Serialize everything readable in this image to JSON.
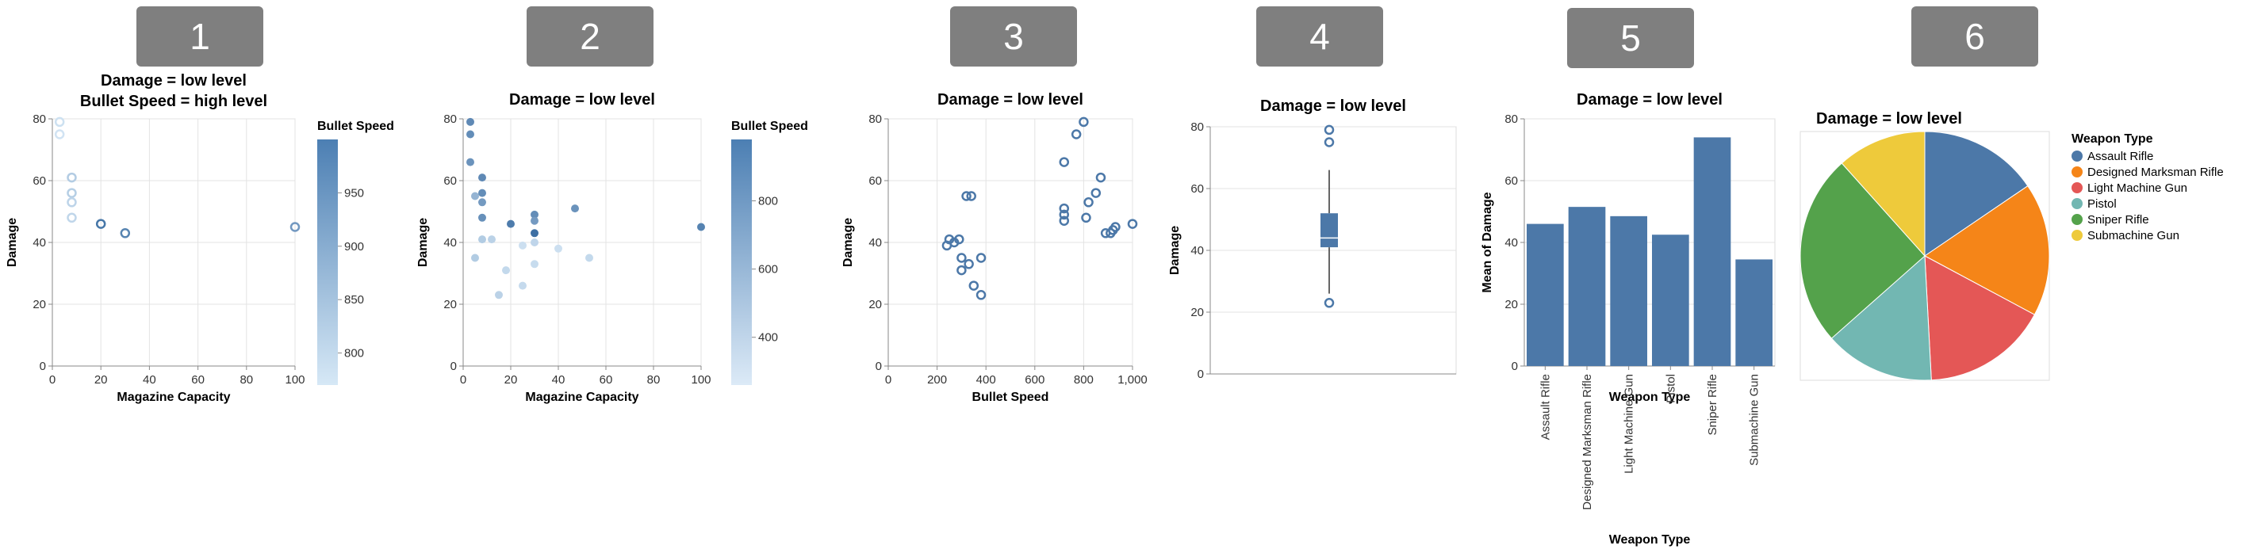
{
  "panels": {
    "badges": [
      "1",
      "2",
      "3",
      "4",
      "5",
      "6"
    ]
  },
  "chart_data": [
    {
      "id": "p1",
      "type": "scatter",
      "title": "Damage = low level",
      "subtitle": "Bullet Speed = high level",
      "xlabel": "Magazine Capacity",
      "ylabel": "Damage",
      "xlim": [
        0,
        100
      ],
      "ylim": [
        0,
        80
      ],
      "xticks": [
        "0",
        "20",
        "40",
        "60",
        "80",
        "100"
      ],
      "yticks": [
        "0",
        "20",
        "40",
        "60",
        "80"
      ],
      "legend": {
        "title": "Bullet Speed",
        "ticks": [
          "800",
          "850",
          "900",
          "950"
        ],
        "range": [
          770,
          1000
        ]
      },
      "points": [
        {
          "x": 3,
          "y": 79,
          "c": 780
        },
        {
          "x": 3,
          "y": 75,
          "c": 775
        },
        {
          "x": 8,
          "y": 61,
          "c": 820
        },
        {
          "x": 8,
          "y": 56,
          "c": 815
        },
        {
          "x": 8,
          "y": 53,
          "c": 805
        },
        {
          "x": 8,
          "y": 48,
          "c": 800
        },
        {
          "x": 20,
          "y": 46,
          "c": 985
        },
        {
          "x": 30,
          "y": 43,
          "c": 960
        },
        {
          "x": 100,
          "y": 45,
          "c": 920
        }
      ],
      "grid": true,
      "marks": "hollow circles"
    },
    {
      "id": "p2",
      "type": "scatter",
      "title": "Damage = low level",
      "xlabel": "Magazine Capacity",
      "ylabel": "Damage",
      "xlim": [
        0,
        100
      ],
      "ylim": [
        0,
        80
      ],
      "xticks": [
        "0",
        "20",
        "40",
        "60",
        "80",
        "100"
      ],
      "yticks": [
        "0",
        "20",
        "40",
        "60",
        "80"
      ],
      "legend": {
        "title": "Bullet Speed",
        "ticks": [
          "400",
          "600",
          "800"
        ],
        "range": [
          260,
          980
        ]
      },
      "points": [
        {
          "x": 3,
          "y": 79,
          "c": 820
        },
        {
          "x": 3,
          "y": 75,
          "c": 800
        },
        {
          "x": 3,
          "y": 66,
          "c": 760
        },
        {
          "x": 5,
          "y": 55,
          "c": 560
        },
        {
          "x": 5,
          "y": 35,
          "c": 420
        },
        {
          "x": 8,
          "y": 61,
          "c": 820
        },
        {
          "x": 8,
          "y": 56,
          "c": 800
        },
        {
          "x": 8,
          "y": 53,
          "c": 720
        },
        {
          "x": 8,
          "y": 48,
          "c": 780
        },
        {
          "x": 8,
          "y": 41,
          "c": 420
        },
        {
          "x": 12,
          "y": 41,
          "c": 380
        },
        {
          "x": 15,
          "y": 23,
          "c": 380
        },
        {
          "x": 18,
          "y": 31,
          "c": 340
        },
        {
          "x": 20,
          "y": 46,
          "c": 900
        },
        {
          "x": 25,
          "y": 39,
          "c": 300
        },
        {
          "x": 25,
          "y": 26,
          "c": 330
        },
        {
          "x": 30,
          "y": 49,
          "c": 800
        },
        {
          "x": 30,
          "y": 47,
          "c": 720
        },
        {
          "x": 30,
          "y": 43,
          "c": 980
        },
        {
          "x": 30,
          "y": 40,
          "c": 360
        },
        {
          "x": 30,
          "y": 33,
          "c": 320
        },
        {
          "x": 40,
          "y": 38,
          "c": 300
        },
        {
          "x": 47,
          "y": 51,
          "c": 760
        },
        {
          "x": 53,
          "y": 35,
          "c": 340
        },
        {
          "x": 100,
          "y": 45,
          "c": 860
        }
      ],
      "grid": true,
      "marks": "filled circles"
    },
    {
      "id": "p3",
      "type": "scatter",
      "title": "Damage = low level",
      "xlabel": "Bullet Speed",
      "ylabel": "Damage",
      "xlim": [
        0,
        1000
      ],
      "ylim": [
        0,
        80
      ],
      "xticks": [
        "0",
        "200",
        "400",
        "600",
        "800",
        "1,000"
      ],
      "yticks": [
        "0",
        "20",
        "40",
        "60",
        "80"
      ],
      "points": [
        {
          "x": 240,
          "y": 39
        },
        {
          "x": 250,
          "y": 41
        },
        {
          "x": 270,
          "y": 40
        },
        {
          "x": 290,
          "y": 41
        },
        {
          "x": 300,
          "y": 31
        },
        {
          "x": 300,
          "y": 35
        },
        {
          "x": 320,
          "y": 55
        },
        {
          "x": 330,
          "y": 33
        },
        {
          "x": 340,
          "y": 55
        },
        {
          "x": 350,
          "y": 26
        },
        {
          "x": 380,
          "y": 23
        },
        {
          "x": 380,
          "y": 35
        },
        {
          "x": 720,
          "y": 66
        },
        {
          "x": 720,
          "y": 51
        },
        {
          "x": 720,
          "y": 49
        },
        {
          "x": 720,
          "y": 47
        },
        {
          "x": 770,
          "y": 75
        },
        {
          "x": 800,
          "y": 79
        },
        {
          "x": 810,
          "y": 48
        },
        {
          "x": 820,
          "y": 53
        },
        {
          "x": 850,
          "y": 56
        },
        {
          "x": 870,
          "y": 61
        },
        {
          "x": 890,
          "y": 43
        },
        {
          "x": 910,
          "y": 43
        },
        {
          "x": 920,
          "y": 44
        },
        {
          "x": 930,
          "y": 45
        },
        {
          "x": 1000,
          "y": 46
        }
      ],
      "grid": true,
      "marks": "hollow circles"
    },
    {
      "id": "p4",
      "type": "box",
      "title": "Damage = low level",
      "ylabel": "Damage",
      "ylim": [
        0,
        80
      ],
      "yticks": [
        "0",
        "20",
        "40",
        "60",
        "80"
      ],
      "box": {
        "min": 26,
        "q1": 41,
        "median": 44,
        "q3": 52,
        "max": 66
      },
      "outliers": [
        79,
        75,
        23
      ],
      "grid": true
    },
    {
      "id": "p5",
      "type": "bar",
      "title": "Damage = low level",
      "xlabel": "Weapon Type",
      "ylabel": "Mean of Damage",
      "ylim": [
        0,
        80
      ],
      "yticks": [
        "0",
        "20",
        "40",
        "60",
        "80"
      ],
      "categories": [
        "Assault Rifle",
        "Designed Marksman Rifle",
        "Light Machine Gun",
        "Pistol",
        "Sniper Rifle",
        "Submachine Gun"
      ],
      "values": [
        46,
        51.5,
        48.5,
        42.5,
        74,
        34.5
      ],
      "grid": true
    },
    {
      "id": "p6",
      "type": "pie",
      "title": "Damage = low level",
      "legend": {
        "title": "Weapon Type",
        "placement": "right",
        "entries": [
          "Assault Rifle",
          "Designed Marksman Rifle",
          "Light Machine Gun",
          "Pistol",
          "Sniper Rifle",
          "Submachine Gun"
        ]
      },
      "values": [
        46,
        51.5,
        48.5,
        42.5,
        74,
        34.5
      ],
      "colors": [
        "#4c78a8",
        "#f58518",
        "#e45756",
        "#72b7b2",
        "#54a24b",
        "#eeca3b"
      ]
    }
  ]
}
